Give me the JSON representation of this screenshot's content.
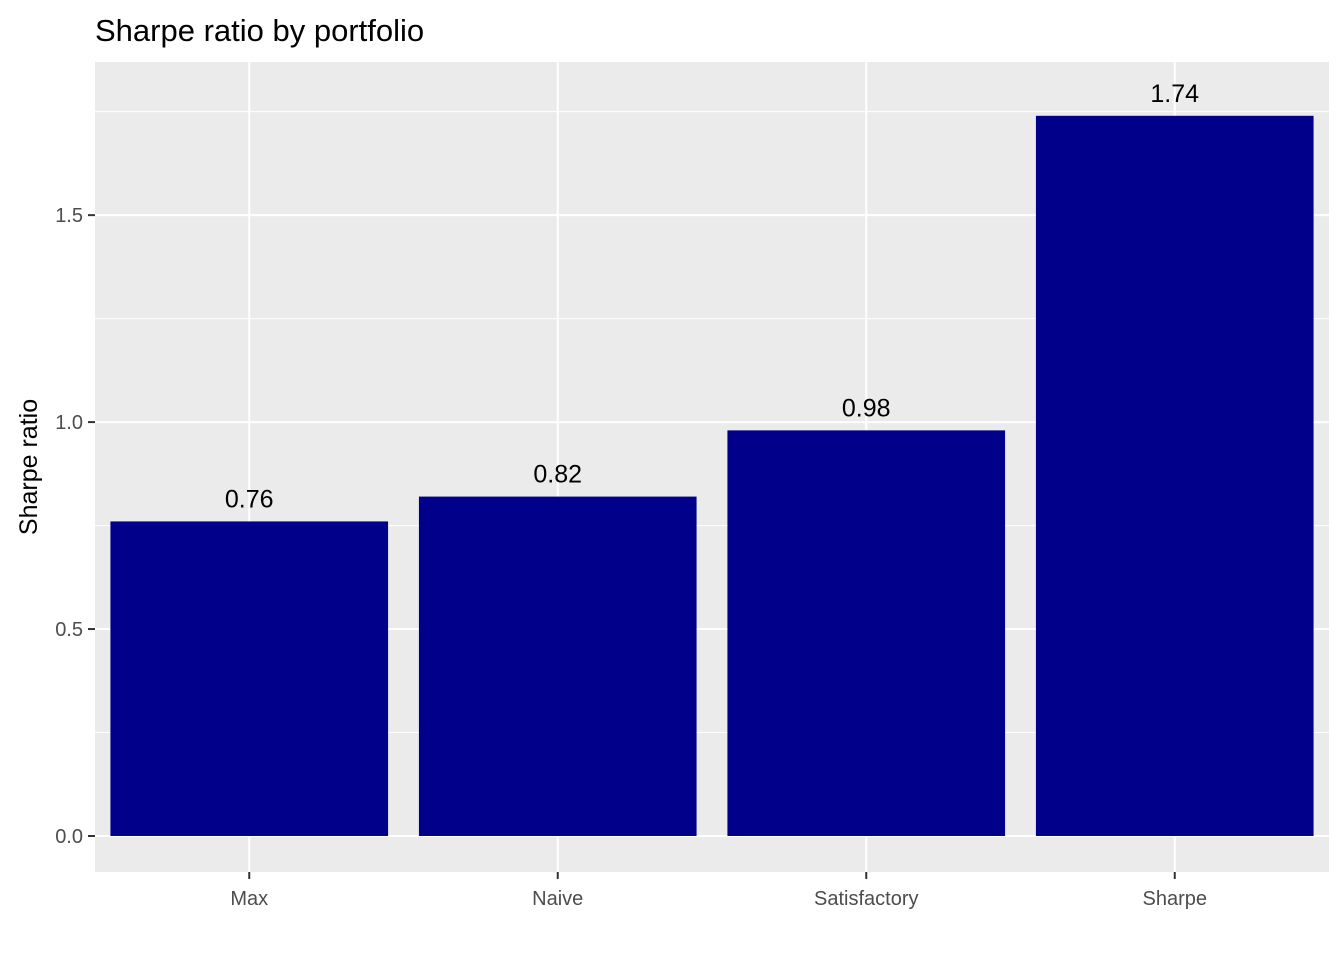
{
  "chart_data": {
    "type": "bar",
    "title": "Sharpe ratio by portfolio",
    "xlabel": "",
    "ylabel": "Sharpe ratio",
    "categories": [
      "Max",
      "Naive",
      "Satisfactory",
      "Sharpe"
    ],
    "values": [
      0.76,
      0.82,
      0.98,
      1.74
    ],
    "data_labels": [
      "0.76",
      "0.82",
      "0.98",
      "1.74"
    ],
    "y_ticks": [
      0.0,
      0.5,
      1.0,
      1.5
    ],
    "y_tick_labels": [
      "0.0",
      "0.5",
      "1.0",
      "1.5"
    ],
    "ylim": [
      -0.087,
      1.87
    ],
    "grid": true,
    "legend": "none",
    "colors": {
      "bar": "#00008B",
      "panel_background": "#EBEBEB",
      "grid_major": "#FFFFFF",
      "tick_text": "#4D4D4D"
    }
  }
}
